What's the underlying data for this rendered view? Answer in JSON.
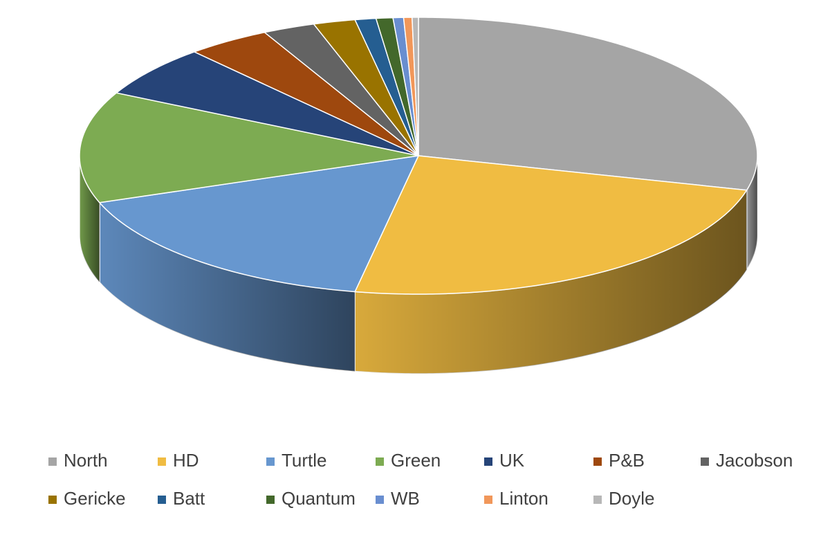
{
  "chart_data": {
    "type": "pie",
    "categories": [
      "North",
      "HD",
      "Turtle",
      "Green",
      "UK",
      "P&B",
      "Jacobson",
      "Gericke",
      "Batt",
      "Quantum",
      "WB",
      "Linton",
      "Doyle"
    ],
    "values": [
      29,
      24,
      16.5,
      13,
      6,
      4,
      2.5,
      2,
      1,
      0.8,
      0.5,
      0.4,
      0.3
    ],
    "colors": [
      "#a5a5a5",
      "#f0bc42",
      "#6797cf",
      "#7dab52",
      "#264478",
      "#9e480e",
      "#636363",
      "#997300",
      "#255e91",
      "#43682b",
      "#698ed0",
      "#f1975a",
      "#b7b7b7"
    ],
    "legend": "bottom"
  }
}
